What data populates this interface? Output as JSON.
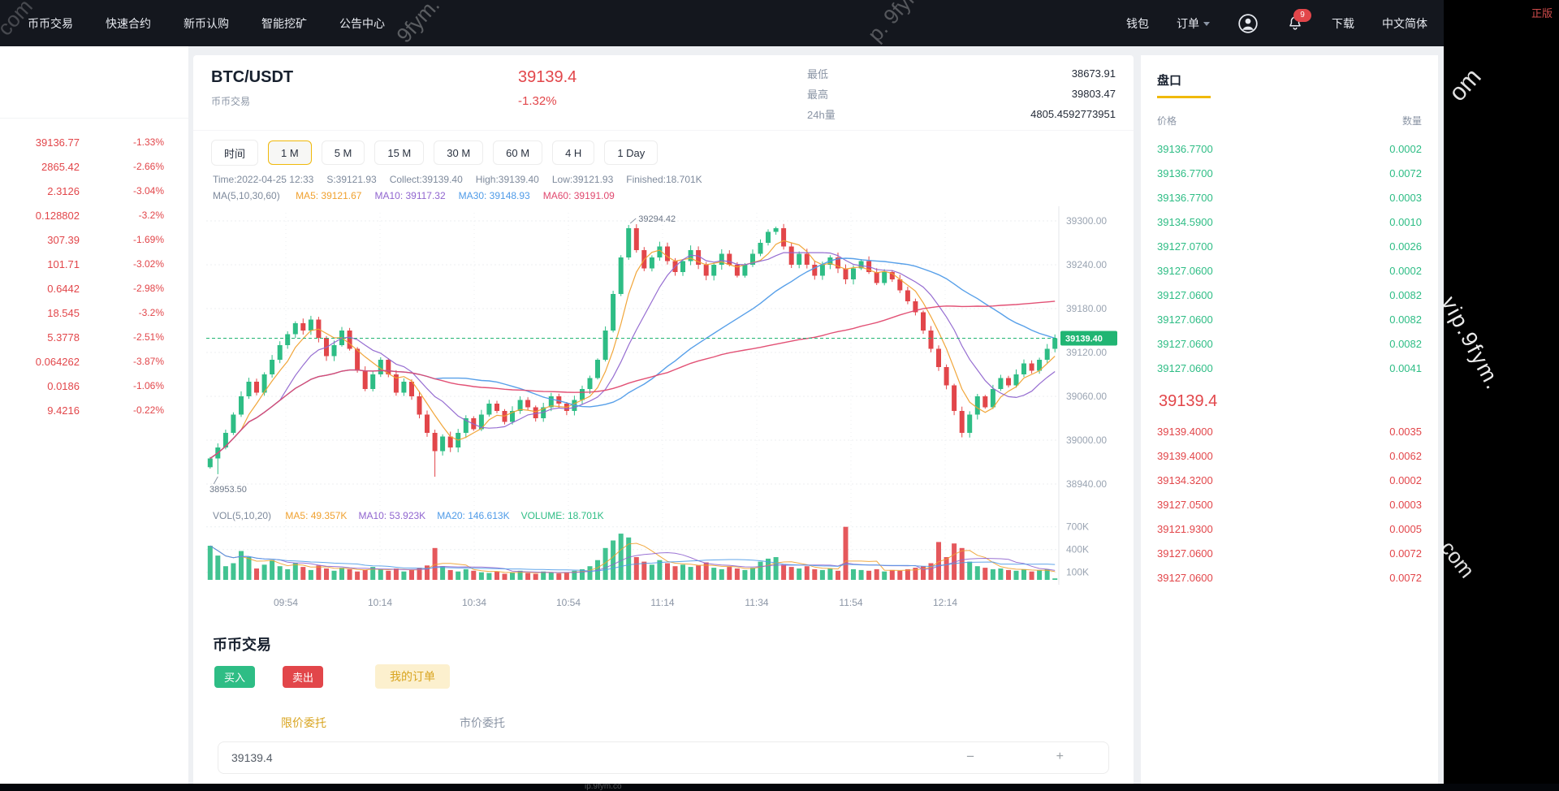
{
  "page": {
    "corner_tag": "正版",
    "watermark_main": "vip.9fym.",
    "watermark_tail": "com",
    "watermark_om": "om",
    "watermark_nav1": "9fym. c",
    "watermark_nav2": "p. 9fym",
    "watermark_nav3": "com",
    "watermark_bottom": "ip.9fym.co"
  },
  "nav": {
    "left_items": [
      "币币交易",
      "快速合约",
      "新币认购",
      "智能挖矿",
      "公告中心"
    ],
    "wallet": "钱包",
    "orders": "订单",
    "download": "下载",
    "language": "中文简体",
    "notification_count": "9"
  },
  "market_list": {
    "rows": [
      {
        "price": "39136.77",
        "change": "-1.33%"
      },
      {
        "price": "2865.42",
        "change": "-2.66%"
      },
      {
        "price": "2.3126",
        "change": "-3.04%"
      },
      {
        "price": "0.128802",
        "change": "-3.2%"
      },
      {
        "price": "307.39",
        "change": "-1.69%"
      },
      {
        "price": "101.71",
        "change": "-3.02%"
      },
      {
        "price": "0.6442",
        "change": "-2.98%"
      },
      {
        "price": "18.545",
        "change": "-3.2%"
      },
      {
        "price": "5.3778",
        "change": "-2.51%"
      },
      {
        "price": "0.064262",
        "change": "-3.87%"
      },
      {
        "price": "0.0186",
        "change": "-1.06%"
      },
      {
        "price": "9.4216",
        "change": "-0.22%"
      }
    ]
  },
  "chart_panel": {
    "symbol": "BTC/USDT",
    "symbol_subtitle": "币币交易",
    "last_price": "39139.4",
    "change_percent": "-1.32%",
    "stats": [
      {
        "label": "最低",
        "value": "38673.91"
      },
      {
        "label": "最高",
        "value": "39803.47"
      },
      {
        "label": "24h量",
        "value": "4805.4592773951"
      }
    ],
    "timeframe_label": "时间",
    "timeframes": [
      "1 M",
      "5 M",
      "15 M",
      "30 M",
      "60 M",
      "4 H",
      "1 Day"
    ],
    "active_timeframe": "1 M",
    "ohlc_info": [
      "Time:2022-04-25 12:33",
      "S:39121.93",
      "Collect:39139.40",
      "High:39139.40",
      "Low:39121.93",
      "Finished:18.701K"
    ],
    "ma_info": {
      "prefix": "MA(5,10,30,60)",
      "items": [
        {
          "text": "MA5: 39121.67",
          "color": "#f0a12f"
        },
        {
          "text": "MA10: 39117.32",
          "color": "#9065cf"
        },
        {
          "text": "MA30: 39148.93",
          "color": "#4f9be8"
        },
        {
          "text": "MA60: 39191.09",
          "color": "#e0486e"
        }
      ]
    },
    "vol_info": {
      "prefix": "VOL(5,10,20)",
      "items": [
        {
          "text": "MA5: 49.357K",
          "color": "#f0a12f"
        },
        {
          "text": "MA10: 53.923K",
          "color": "#9065cf"
        },
        {
          "text": "MA20: 146.613K",
          "color": "#4f9be8"
        },
        {
          "text": "VOLUME: 18.701K",
          "color": "#2ebd85"
        }
      ]
    }
  },
  "chart_data": {
    "type": "candlestick_with_volume",
    "title": "BTC/USDT 1-minute candles with MA(5,10,30,60) and volume",
    "x_labels": [
      "09:54",
      "10:14",
      "10:34",
      "10:54",
      "11:14",
      "11:34",
      "11:54",
      "12:14"
    ],
    "y_ticks": [
      39300,
      39240,
      39180,
      39120,
      39060,
      39000,
      38940
    ],
    "y_range": [
      38920,
      39320
    ],
    "volume_tick_labels": [
      "700K",
      "400K",
      "100K"
    ],
    "volume_tick_values_k": [
      700,
      400,
      100
    ],
    "current_price": 39139.4,
    "current_price_label": "39139.40",
    "annotation_high": "39294.42",
    "annotation_high_value": 39294.42,
    "annotation_low": "38953.50",
    "annotation_low_value": 38953.5,
    "closes": [
      38975,
      38990,
      39010,
      39035,
      39060,
      39080,
      39065,
      39090,
      39110,
      39130,
      39145,
      39160,
      39150,
      39165,
      39140,
      39115,
      39130,
      39150,
      39125,
      39095,
      39070,
      39090,
      39110,
      39090,
      39065,
      39080,
      39060,
      39035,
      39010,
      38985,
      39005,
      38990,
      39010,
      39030,
      39015,
      39035,
      39050,
      39040,
      39025,
      39040,
      39055,
      39045,
      39030,
      39045,
      39060,
      39050,
      39040,
      39055,
      39070,
      39085,
      39110,
      39150,
      39200,
      39250,
      39290,
      39260,
      39235,
      39250,
      39265,
      39245,
      39230,
      39245,
      39260,
      39240,
      39225,
      39240,
      39255,
      39240,
      39225,
      39240,
      39255,
      39270,
      39285,
      39290,
      39265,
      39240,
      39255,
      39240,
      39225,
      39240,
      39250,
      39235,
      39220,
      39235,
      39245,
      39230,
      39215,
      39230,
      39220,
      39205,
      39190,
      39175,
      39150,
      39125,
      39100,
      39075,
      39040,
      39010,
      39035,
      39060,
      39045,
      39070,
      39085,
      39075,
      39090,
      39105,
      39095,
      39110,
      39125,
      39139.4
    ],
    "volumes_k": [
      450,
      320,
      180,
      220,
      380,
      300,
      150,
      200,
      260,
      180,
      140,
      220,
      170,
      130,
      190,
      150,
      120,
      160,
      140,
      110,
      130,
      170,
      140,
      120,
      150,
      110,
      130,
      160,
      190,
      420,
      180,
      130,
      110,
      140,
      120,
      100,
      90,
      110,
      80,
      100,
      120,
      90,
      80,
      110,
      95,
      85,
      100,
      120,
      140,
      180,
      260,
      420,
      520,
      610,
      560,
      300,
      240,
      200,
      260,
      220,
      180,
      200,
      170,
      190,
      230,
      160,
      140,
      170,
      150,
      130,
      160,
      240,
      280,
      300,
      200,
      170,
      150,
      180,
      140,
      130,
      150,
      120,
      700,
      140,
      130,
      120,
      140,
      110,
      130,
      120,
      140,
      160,
      180,
      220,
      500,
      300,
      480,
      420,
      240,
      180,
      160,
      140,
      150,
      130,
      120,
      140,
      110,
      130,
      140,
      19
    ],
    "colors": {
      "up": "#2ebd85",
      "down": "#e2464a",
      "ma5": "#f0a12f",
      "ma10": "#9065cf",
      "ma30": "#4f9be8",
      "ma60": "#e0486e",
      "grid": "#eceff2",
      "axis_text": "#9aa4b2",
      "price_tag": "#21b573"
    },
    "legend_position": "top-left",
    "grid": true
  },
  "order_book": {
    "title": "盘口",
    "price_col": "价格",
    "amount_col": "数量",
    "asks": [
      {
        "price": "39136.7700",
        "amount": "0.0002"
      },
      {
        "price": "39136.7700",
        "amount": "0.0072"
      },
      {
        "price": "39136.7700",
        "amount": "0.0003"
      },
      {
        "price": "39134.5900",
        "amount": "0.0010"
      },
      {
        "price": "39127.0700",
        "amount": "0.0026"
      },
      {
        "price": "39127.0600",
        "amount": "0.0002"
      },
      {
        "price": "39127.0600",
        "amount": "0.0082"
      },
      {
        "price": "39127.0600",
        "amount": "0.0082"
      },
      {
        "price": "39127.0600",
        "amount": "0.0082"
      },
      {
        "price": "39127.0600",
        "amount": "0.0041"
      }
    ],
    "last_price": "39139.4",
    "bids": [
      {
        "price": "39139.4000",
        "amount": "0.0035"
      },
      {
        "price": "39139.4000",
        "amount": "0.0062"
      },
      {
        "price": "39134.3200",
        "amount": "0.0002"
      },
      {
        "price": "39127.0500",
        "amount": "0.0003"
      },
      {
        "price": "39121.9300",
        "amount": "0.0005"
      },
      {
        "price": "39127.0600",
        "amount": "0.0072"
      },
      {
        "price": "39127.0600",
        "amount": "0.0072"
      }
    ]
  },
  "trade_section": {
    "title": "币币交易",
    "buy_label": "买入",
    "sell_label": "卖出",
    "my_orders_label": "我的订单",
    "tabs": [
      "限价委托",
      "市价委托"
    ],
    "active_tab": "限价委托",
    "price_value": "39139.4",
    "minus": "−",
    "plus": "+"
  }
}
